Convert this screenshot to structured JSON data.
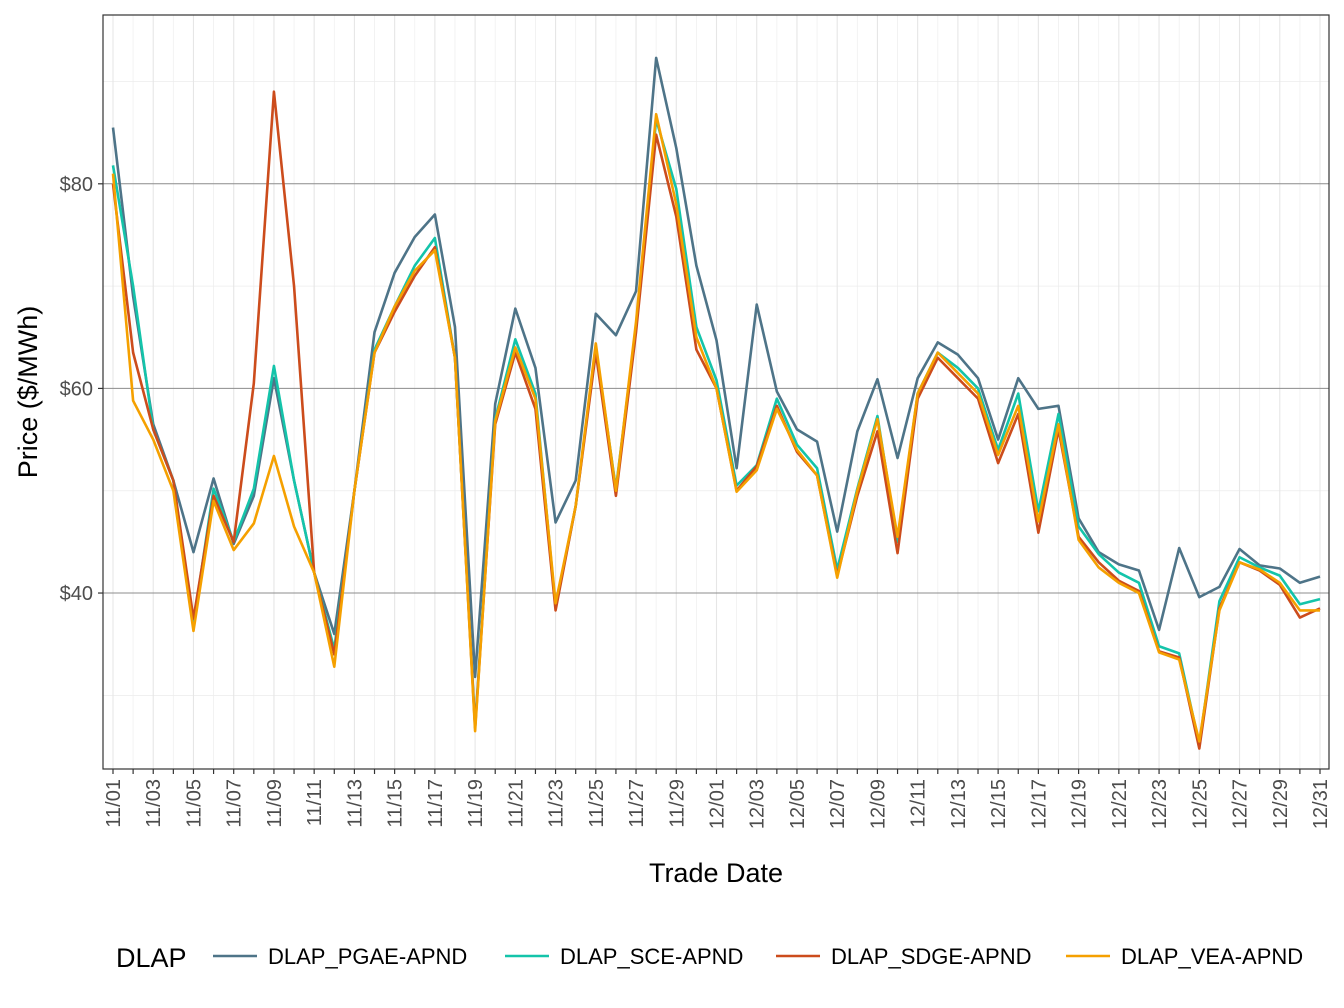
{
  "chart_data": {
    "type": "line",
    "xlabel": "Trade Date",
    "ylabel": "Price ($/MWh)",
    "ylim": [
      22.8,
      96.5
    ],
    "y_ticks": [
      40,
      60,
      80
    ],
    "y_tick_labels": [
      "$40",
      "$60",
      "$80"
    ],
    "x_tick_labels": [
      "11/01",
      "11/03",
      "11/05",
      "11/07",
      "11/09",
      "11/11",
      "11/13",
      "11/15",
      "11/17",
      "11/19",
      "11/21",
      "11/23",
      "11/25",
      "11/27",
      "11/29",
      "12/01",
      "12/03",
      "12/05",
      "12/07",
      "12/09",
      "12/11",
      "12/13",
      "12/15",
      "12/17",
      "12/19",
      "12/21",
      "12/23",
      "12/25",
      "12/27",
      "12/29",
      "12/31"
    ],
    "x": [
      "11/01",
      "11/02",
      "11/03",
      "11/04",
      "11/05",
      "11/06",
      "11/07",
      "11/08",
      "11/09",
      "11/10",
      "11/11",
      "11/12",
      "11/13",
      "11/14",
      "11/15",
      "11/16",
      "11/17",
      "11/18",
      "11/19",
      "11/20",
      "11/21",
      "11/22",
      "11/23",
      "11/24",
      "11/25",
      "11/26",
      "11/27",
      "11/28",
      "11/29",
      "11/30",
      "12/01",
      "12/02",
      "12/03",
      "12/04",
      "12/05",
      "12/06",
      "12/07",
      "12/08",
      "12/09",
      "12/10",
      "12/11",
      "12/12",
      "12/13",
      "12/14",
      "12/15",
      "12/16",
      "12/17",
      "12/18",
      "12/19",
      "12/20",
      "12/21",
      "12/22",
      "12/23",
      "12/24",
      "12/25",
      "12/26",
      "12/27",
      "12/28",
      "12/29",
      "12/30",
      "12/31"
    ],
    "grid": true,
    "legend_title": "DLAP",
    "legend_position": "bottom",
    "series": [
      {
        "name": "DLAP_PGAE-APND",
        "color": "#4e7488",
        "values": [
          85.5,
          69.0,
          56.5,
          51.0,
          44.0,
          51.2,
          44.8,
          49.5,
          61.0,
          51.0,
          42.0,
          36.0,
          50.0,
          65.5,
          71.3,
          74.8,
          77.0,
          66.0,
          31.8,
          58.5,
          67.8,
          62.0,
          46.9,
          51.0,
          67.3,
          65.2,
          69.5,
          92.3,
          83.5,
          72.0,
          64.7,
          52.2,
          68.2,
          59.7,
          56.0,
          54.8,
          46.0,
          55.8,
          60.9,
          53.2,
          61.0,
          64.5,
          63.3,
          61.0,
          55.0,
          61.0,
          58.0,
          58.3,
          47.3,
          44.0,
          42.8,
          42.2,
          36.4,
          44.4,
          39.6,
          40.6,
          44.3,
          42.7,
          42.4,
          41.0,
          41.6
        ]
      },
      {
        "name": "DLAP_SCE-APND",
        "color": "#14c4aa",
        "values": [
          81.8,
          70.0,
          56.0,
          51.0,
          37.0,
          50.2,
          45.0,
          50.2,
          62.2,
          51.0,
          42.0,
          34.5,
          50.0,
          63.8,
          68.0,
          72.0,
          74.7,
          63.0,
          27.0,
          57.0,
          64.8,
          59.5,
          38.6,
          48.5,
          64.0,
          50.2,
          66.0,
          86.3,
          79.5,
          66.0,
          60.8,
          50.5,
          52.5,
          59.0,
          54.5,
          52.2,
          42.3,
          50.2,
          57.3,
          45.0,
          59.5,
          63.5,
          62.0,
          60.0,
          54.0,
          59.5,
          48.0,
          57.5,
          46.5,
          43.8,
          42.0,
          41.0,
          34.8,
          34.1,
          25.2,
          39.2,
          43.5,
          42.5,
          41.7,
          38.9,
          39.4
        ]
      },
      {
        "name": "DLAP_SDGE-APND",
        "color": "#cc4c1c",
        "values": [
          80.0,
          63.5,
          56.0,
          51.0,
          37.5,
          49.5,
          45.0,
          60.5,
          89.0,
          70.0,
          42.0,
          34.0,
          50.0,
          63.5,
          67.5,
          71.0,
          73.8,
          63.0,
          26.8,
          56.5,
          63.5,
          58.0,
          38.3,
          48.5,
          63.5,
          49.5,
          65.5,
          84.8,
          76.8,
          63.8,
          60.0,
          50.0,
          52.4,
          58.3,
          53.8,
          51.5,
          41.7,
          49.5,
          55.8,
          43.9,
          59.0,
          63.0,
          61.0,
          59.0,
          52.7,
          57.5,
          45.9,
          56.0,
          45.5,
          43.0,
          41.2,
          40.2,
          34.3,
          33.7,
          24.8,
          38.5,
          43.0,
          42.2,
          40.8,
          37.6,
          38.5
        ]
      },
      {
        "name": "DLAP_VEA-APND",
        "color": "#f5a000",
        "values": [
          81.0,
          58.8,
          55.0,
          50.0,
          36.3,
          49.0,
          44.2,
          46.8,
          53.4,
          46.5,
          42.0,
          32.8,
          50.0,
          63.5,
          68.0,
          71.5,
          73.5,
          63.0,
          26.5,
          56.8,
          64.0,
          59.0,
          39.0,
          48.5,
          64.4,
          50.0,
          66.5,
          86.8,
          78.0,
          65.0,
          60.0,
          49.9,
          52.0,
          58.0,
          54.0,
          51.5,
          41.5,
          50.0,
          57.0,
          45.5,
          59.5,
          63.5,
          61.5,
          59.5,
          53.5,
          58.3,
          47.0,
          56.5,
          45.2,
          42.5,
          41.0,
          40.0,
          34.2,
          33.5,
          25.5,
          38.3,
          43.0,
          42.3,
          41.0,
          38.3,
          38.3
        ]
      }
    ]
  }
}
